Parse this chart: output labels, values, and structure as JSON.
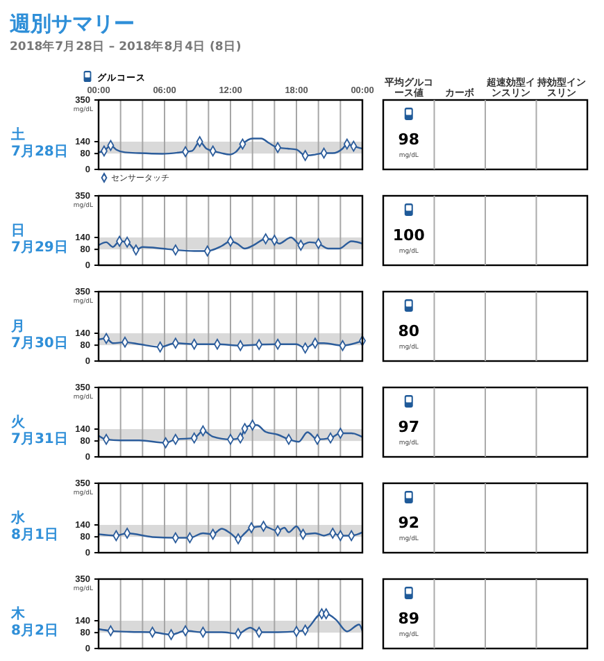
{
  "chart_data": [
    {
      "type": "line",
      "title": "週別サマリー",
      "subtitle": "2018年7月28日 – 2018年8月4日 (8日)",
      "legend_title": "土 7月28日",
      "ylabel": "mg/dL",
      "annotations": [
        "グルコース",
        "平均グルコース値",
        "カーボ",
        "超速効型インスリン",
        "持効型インスリン",
        "98",
        "mg/dL"
      ],
      "xlim": [
        0,
        24
      ],
      "xticks": [
        {
          "value": 0,
          "label": "00:00"
        },
        {
          "value": 2,
          "label": null
        },
        {
          "value": 4,
          "label": null
        },
        {
          "value": 6,
          "label": "06:00"
        },
        {
          "value": 8,
          "label": null
        },
        {
          "value": 10,
          "label": null
        },
        {
          "value": 12,
          "label": "12:00"
        },
        {
          "value": 14,
          "label": null
        },
        {
          "value": 16,
          "label": null
        },
        {
          "value": 18,
          "label": "18:00"
        },
        {
          "value": 20,
          "label": null
        },
        {
          "value": 22,
          "label": null
        },
        {
          "value": 24,
          "label": "00:00"
        }
      ],
      "ylim": [
        0,
        350
      ],
      "yticks": [
        0,
        80,
        140,
        350
      ],
      "grid": "x",
      "legend": "bottom left",
      "bands": [
        {
          "axis": "y",
          "from": 80,
          "to": 140,
          "color": "#d9d9d9"
        }
      ],
      "series": [
        {
          "type": "line",
          "color": "#2b5c9b",
          "x": [
            0,
            0.5,
            1.1,
            1.6,
            2.4,
            3.7,
            5.8,
            7.9,
            8.5,
            9.2,
            9.8,
            10.4,
            11.2,
            11.9,
            12.5,
            13.1,
            14.0,
            14.8,
            15.5,
            16.3,
            17.2,
            18.0,
            18.8,
            19.7,
            20.5,
            21.3,
            22.2,
            22.6,
            23.2,
            24
          ],
          "values": [
            86,
            93,
            121,
            100,
            86,
            82,
            79,
            89,
            93,
            140,
            105,
            93,
            82,
            75,
            89,
            128,
            156,
            156,
            133,
            110,
            105,
            100,
            70,
            75,
            82,
            82,
            105,
            128,
            117,
            105
          ]
        },
        {
          "type": "scatter",
          "name": "センサータッチ",
          "color": "#2b5c9b",
          "marker": "diamond",
          "x": [
            0.5,
            1.1,
            7.9,
            9.2,
            10.4,
            13.1,
            16.3,
            18.8,
            20.5,
            22.6,
            23.2
          ],
          "values": [
            93,
            121,
            89,
            140,
            93,
            128,
            110,
            70,
            82,
            128,
            117
          ]
        }
      ]
    },
    {
      "type": "line",
      "legend_title": "日 7月29日",
      "ylabel": "mg/dL",
      "annotations": [
        "100",
        "mg/dL"
      ],
      "tick_labels": "y",
      "xlim": [
        0,
        24
      ],
      "xticks": [
        {
          "value": 0,
          "label": null
        },
        {
          "value": 2,
          "label": null
        },
        {
          "value": 4,
          "label": null
        },
        {
          "value": 6,
          "label": null
        },
        {
          "value": 8,
          "label": null
        },
        {
          "value": 10,
          "label": null
        },
        {
          "value": 12,
          "label": null
        },
        {
          "value": 14,
          "label": null
        },
        {
          "value": 16,
          "label": null
        },
        {
          "value": 18,
          "label": null
        },
        {
          "value": 20,
          "label": null
        },
        {
          "value": 22,
          "label": null
        },
        {
          "value": 24,
          "label": null
        }
      ],
      "ylim": [
        0,
        350
      ],
      "yticks": [
        0,
        80,
        140,
        350
      ],
      "grid": "x",
      "bands": [
        {
          "axis": "y",
          "from": 80,
          "to": 140,
          "color": "#d9d9d9"
        }
      ],
      "series": [
        {
          "type": "line",
          "color": "#2b5c9b",
          "x": [
            0,
            0.7,
            1.3,
            1.9,
            2.6,
            3.4,
            4.0,
            5.8,
            7.0,
            8.7,
            9.9,
            11.2,
            12.0,
            12.6,
            13.3,
            14.1,
            15.2,
            16.0,
            16.4,
            17.5,
            18.4,
            19.2,
            20.0,
            20.9,
            21.9,
            23.0,
            24
          ],
          "values": [
            101,
            116,
            92,
            121,
            116,
            77,
            92,
            84,
            77,
            72,
            72,
            97,
            121,
            109,
            84,
            101,
            133,
            126,
            109,
            140,
            101,
            116,
            109,
            84,
            84,
            121,
            109
          ]
        },
        {
          "type": "scatter",
          "color": "#2b5c9b",
          "marker": "diamond",
          "x": [
            1.9,
            2.6,
            3.4,
            7.0,
            9.9,
            12.0,
            15.2,
            16.0,
            18.4,
            20.0
          ],
          "values": [
            121,
            116,
            77,
            77,
            72,
            121,
            133,
            126,
            101,
            109
          ]
        }
      ]
    },
    {
      "type": "line",
      "legend_title": "月 7月30日",
      "ylabel": "mg/dL",
      "annotations": [
        "80",
        "mg/dL"
      ],
      "tick_labels": "y",
      "xlim": [
        0,
        24
      ],
      "xticks": [
        {
          "value": 0,
          "label": null
        },
        {
          "value": 2,
          "label": null
        },
        {
          "value": 4,
          "label": null
        },
        {
          "value": 6,
          "label": null
        },
        {
          "value": 8,
          "label": null
        },
        {
          "value": 10,
          "label": null
        },
        {
          "value": 12,
          "label": null
        },
        {
          "value": 14,
          "label": null
        },
        {
          "value": 16,
          "label": null
        },
        {
          "value": 18,
          "label": null
        },
        {
          "value": 20,
          "label": null
        },
        {
          "value": 22,
          "label": null
        },
        {
          "value": 24,
          "label": null
        }
      ],
      "ylim": [
        0,
        350
      ],
      "yticks": [
        0,
        80,
        140,
        350
      ],
      "grid": "x",
      "bands": [
        {
          "axis": "y",
          "from": 80,
          "to": 140,
          "color": "#d9d9d9"
        }
      ],
      "series": [
        {
          "type": "line",
          "color": "#2b5c9b",
          "x": [
            0,
            0.7,
            1.3,
            2.4,
            3.7,
            5.6,
            7.0,
            8.7,
            10.8,
            12.9,
            14.6,
            16.3,
            18.0,
            18.8,
            19.7,
            20.5,
            22.2,
            23.0,
            24
          ],
          "values": [
            109,
            114,
            90,
            95,
            85,
            71,
            90,
            85,
            85,
            78,
            83,
            85,
            85,
            66,
            90,
            90,
            78,
            85,
            102
          ]
        },
        {
          "type": "scatter",
          "color": "#2b5c9b",
          "marker": "diamond",
          "x": [
            0.7,
            2.4,
            5.6,
            7.0,
            8.7,
            10.8,
            12.9,
            14.6,
            16.3,
            18.8,
            19.7,
            22.2,
            24
          ],
          "values": [
            114,
            95,
            71,
            90,
            85,
            85,
            78,
            83,
            85,
            66,
            90,
            78,
            102
          ]
        }
      ]
    },
    {
      "type": "line",
      "legend_title": "火 7月31日",
      "ylabel": "mg/dL",
      "annotations": [
        "97",
        "mg/dL"
      ],
      "tick_labels": "y",
      "xlim": [
        0,
        24
      ],
      "xticks": [
        {
          "value": 0,
          "label": null
        },
        {
          "value": 2,
          "label": null
        },
        {
          "value": 4,
          "label": null
        },
        {
          "value": 6,
          "label": null
        },
        {
          "value": 8,
          "label": null
        },
        {
          "value": 10,
          "label": null
        },
        {
          "value": 12,
          "label": null
        },
        {
          "value": 14,
          "label": null
        },
        {
          "value": 16,
          "label": null
        },
        {
          "value": 18,
          "label": null
        },
        {
          "value": 20,
          "label": null
        },
        {
          "value": 22,
          "label": null
        },
        {
          "value": 24,
          "label": null
        }
      ],
      "ylim": [
        0,
        350
      ],
      "yticks": [
        0,
        80,
        140,
        350
      ],
      "grid": "x",
      "bands": [
        {
          "axis": "y",
          "from": 80,
          "to": 140,
          "color": "#d9d9d9"
        }
      ],
      "series": [
        {
          "type": "line",
          "color": "#2b5c9b",
          "x": [
            0,
            0.7,
            2.0,
            3.7,
            6.1,
            7.0,
            8.7,
            9.5,
            10.4,
            12.0,
            12.9,
            13.3,
            14.0,
            14.4,
            15.2,
            16.3,
            17.3,
            18.2,
            19.0,
            19.9,
            21.1,
            22.0,
            23.0,
            24
          ],
          "values": [
            107,
            88,
            83,
            83,
            71,
            88,
            95,
            131,
            102,
            88,
            95,
            143,
            160,
            160,
            126,
            112,
            88,
            76,
            124,
            88,
            95,
            119,
            119,
            100
          ]
        },
        {
          "type": "scatter",
          "color": "#2b5c9b",
          "marker": "diamond",
          "x": [
            0.7,
            6.1,
            7.0,
            8.7,
            9.5,
            12.0,
            12.9,
            13.3,
            14.0,
            17.3,
            19.9,
            21.1,
            22.0
          ],
          "values": [
            88,
            71,
            88,
            95,
            131,
            88,
            95,
            143,
            160,
            88,
            88,
            95,
            119
          ]
        }
      ]
    },
    {
      "type": "line",
      "legend_title": "水 8月1日",
      "ylabel": "mg/dL",
      "annotations": [
        "92",
        "mg/dL"
      ],
      "tick_labels": "y",
      "xlim": [
        0,
        24
      ],
      "xticks": [
        {
          "value": 0,
          "label": null
        },
        {
          "value": 2,
          "label": null
        },
        {
          "value": 4,
          "label": null
        },
        {
          "value": 6,
          "label": null
        },
        {
          "value": 8,
          "label": null
        },
        {
          "value": 10,
          "label": null
        },
        {
          "value": 12,
          "label": null
        },
        {
          "value": 14,
          "label": null
        },
        {
          "value": 16,
          "label": null
        },
        {
          "value": 18,
          "label": null
        },
        {
          "value": 20,
          "label": null
        },
        {
          "value": 22,
          "label": null
        },
        {
          "value": 24,
          "label": null
        }
      ],
      "ylim": [
        0,
        350
      ],
      "yticks": [
        0,
        80,
        140,
        350
      ],
      "grid": "x",
      "bands": [
        {
          "axis": "y",
          "from": 80,
          "to": 140,
          "color": "#d9d9d9"
        }
      ],
      "series": [
        {
          "type": "line",
          "color": "#2b5c9b",
          "x": [
            0,
            1.6,
            2.6,
            4.9,
            7.0,
            8.3,
            9.5,
            10.4,
            11.2,
            12.0,
            12.7,
            13.3,
            13.9,
            15.0,
            16.3,
            16.9,
            17.3,
            18.0,
            18.6,
            19.7,
            20.5,
            21.3,
            22.0,
            23.0,
            24
          ],
          "values": [
            93,
            86,
            98,
            79,
            75,
            75,
            98,
            93,
            121,
            98,
            70,
            98,
            126,
            133,
            110,
            126,
            103,
            133,
            93,
            98,
            86,
            98,
            86,
            86,
            103
          ]
        },
        {
          "type": "scatter",
          "color": "#2b5c9b",
          "marker": "diamond",
          "x": [
            1.6,
            2.6,
            7.0,
            8.3,
            10.4,
            12.7,
            13.9,
            15.0,
            16.3,
            18.6,
            21.3,
            22.0,
            23.0
          ],
          "values": [
            86,
            98,
            75,
            75,
            93,
            70,
            126,
            133,
            110,
            93,
            98,
            86,
            86
          ]
        }
      ]
    },
    {
      "type": "line",
      "legend_title": "木 8月2日",
      "ylabel": "mg/dL",
      "annotations": [
        "89",
        "mg/dL"
      ],
      "tick_labels": "y",
      "xlim": [
        0,
        24
      ],
      "xticks": [
        {
          "value": 0,
          "label": null
        },
        {
          "value": 2,
          "label": null
        },
        {
          "value": 4,
          "label": null
        },
        {
          "value": 6,
          "label": null
        },
        {
          "value": 8,
          "label": null
        },
        {
          "value": 10,
          "label": null
        },
        {
          "value": 12,
          "label": null
        },
        {
          "value": 14,
          "label": null
        },
        {
          "value": 16,
          "label": null
        },
        {
          "value": 18,
          "label": null
        },
        {
          "value": 20,
          "label": null
        },
        {
          "value": 22,
          "label": null
        },
        {
          "value": 24,
          "label": null
        }
      ],
      "ylim": [
        0,
        350
      ],
      "yticks": [
        0,
        80,
        140,
        350
      ],
      "grid": "x",
      "bands": [
        {
          "axis": "y",
          "from": 80,
          "to": 140,
          "color": "#d9d9d9"
        }
      ],
      "series": [
        {
          "type": "line",
          "color": "#2b5c9b",
          "x": [
            0,
            1.1,
            2.8,
            4.9,
            6.6,
            7.9,
            9.5,
            11.2,
            12.7,
            13.8,
            14.6,
            16.3,
            18.0,
            18.8,
            20.3,
            20.7,
            21.6,
            22.6,
            23.7,
            24
          ],
          "values": [
            98,
            89,
            84,
            82,
            70,
            89,
            82,
            82,
            75,
            105,
            82,
            82,
            86,
            93,
            175,
            175,
            145,
            86,
            121,
            89
          ]
        },
        {
          "type": "scatter",
          "color": "#2b5c9b",
          "marker": "diamond",
          "x": [
            1.1,
            4.9,
            6.6,
            7.9,
            9.5,
            12.7,
            14.6,
            18.0,
            18.8,
            20.3,
            20.7
          ],
          "values": [
            89,
            82,
            70,
            89,
            82,
            75,
            82,
            86,
            93,
            175,
            175
          ]
        }
      ]
    }
  ]
}
